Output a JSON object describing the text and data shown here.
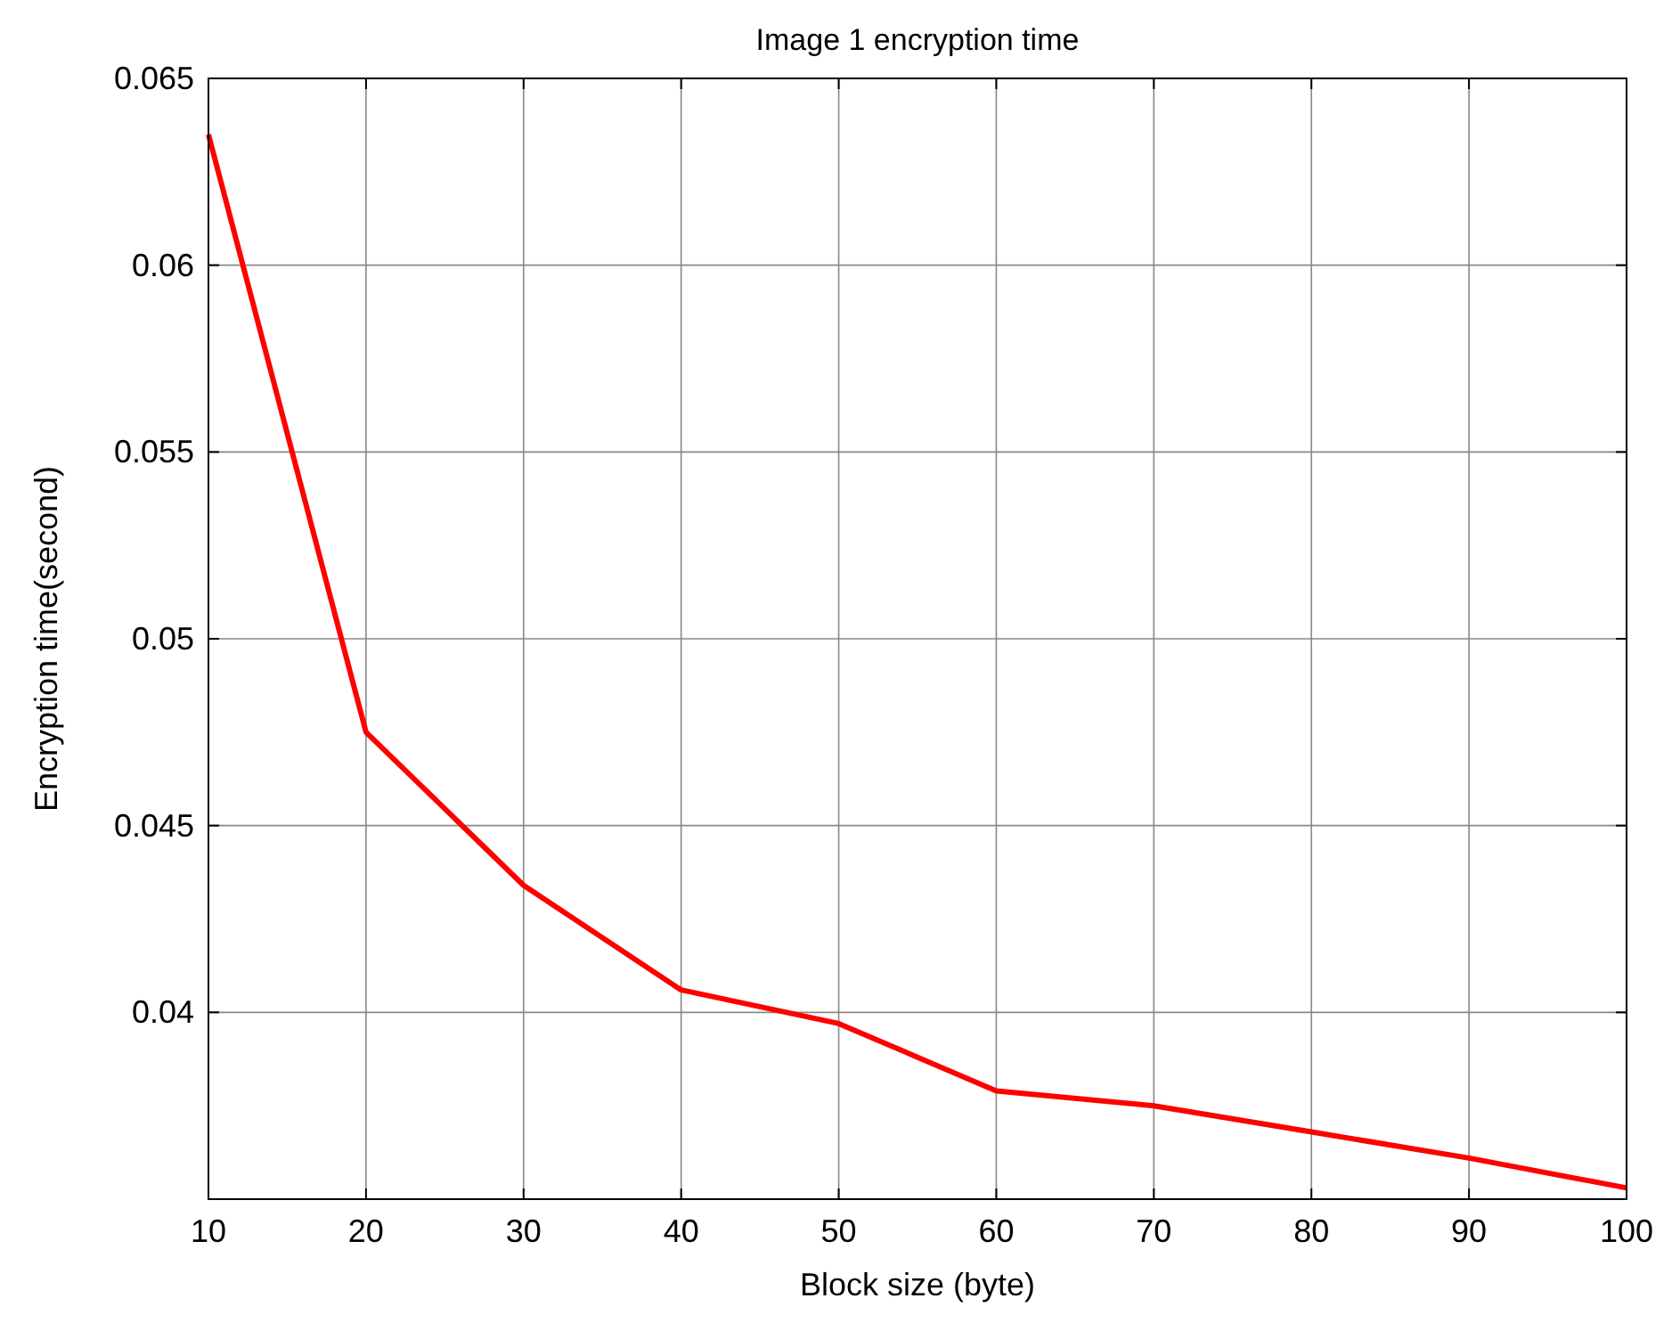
{
  "chart_data": {
    "type": "line",
    "title": "Image 1 encryption time",
    "xlabel": "Block size (byte)",
    "ylabel": "Encryption time(second)",
    "x": [
      10,
      20,
      30,
      40,
      50,
      60,
      70,
      80,
      90,
      100
    ],
    "series": [
      {
        "color": "#ff0000",
        "values": [
          0.0635,
          0.0475,
          0.0434,
          0.0406,
          0.0397,
          0.0379,
          0.0375,
          0.0368,
          0.0361,
          0.0353
        ]
      }
    ],
    "xlim": [
      10,
      100
    ],
    "xticks": [
      10,
      20,
      30,
      40,
      50,
      60,
      70,
      80,
      90,
      100
    ],
    "ylim": [
      0.035,
      0.065
    ],
    "yticks": [
      0.04,
      0.045,
      0.05,
      0.055,
      0.06,
      0.065
    ],
    "grid": true,
    "marker": "none",
    "line_style": "solid"
  }
}
